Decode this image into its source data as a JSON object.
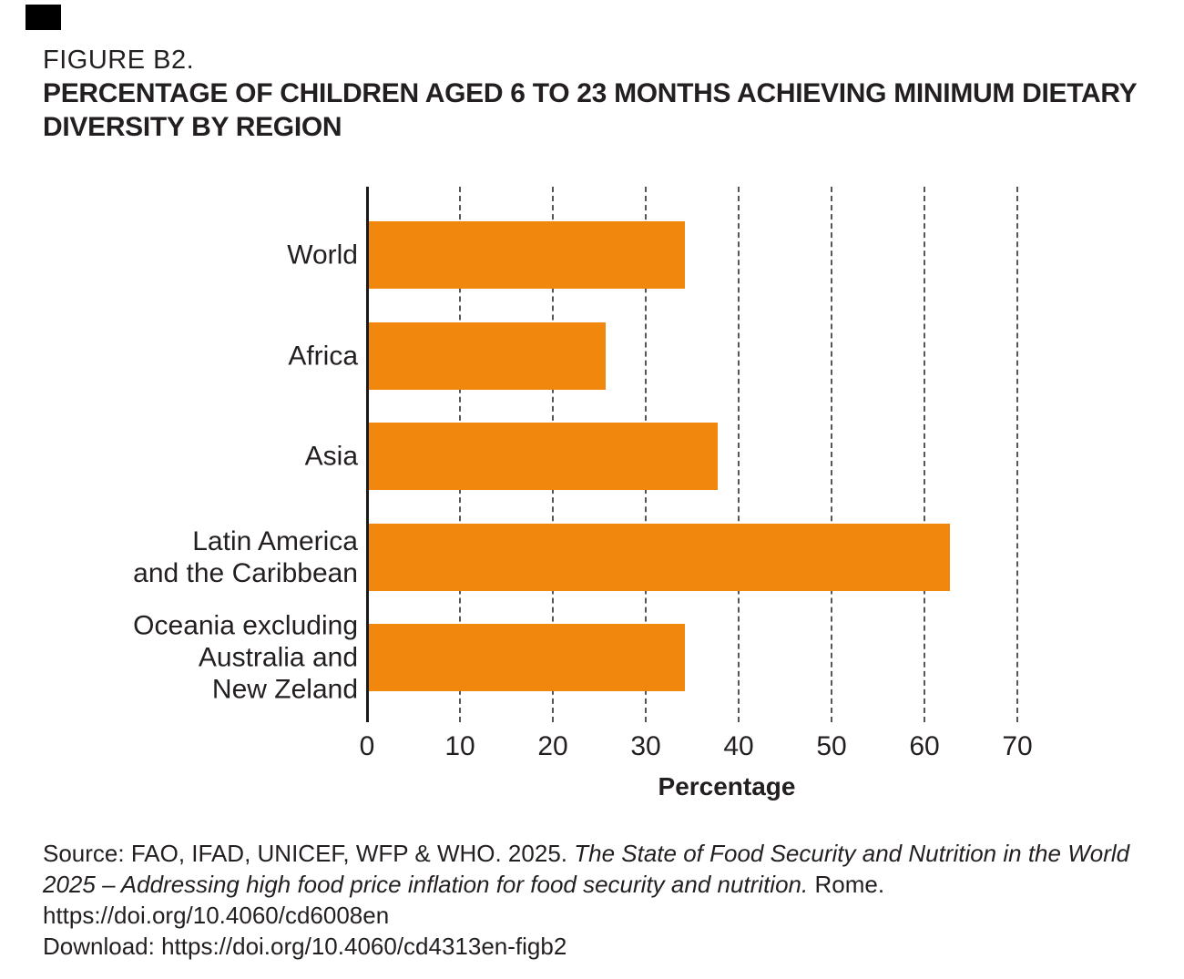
{
  "header": {
    "figure_label": "FIGURE B2.",
    "title_lines": [
      "PERCENTAGE OF CHILDREN AGED 6 TO 23 MONTHS ACHIEVING MINIMUM DIETARY",
      "DIVERSITY BY REGION"
    ]
  },
  "chart_data": {
    "type": "bar",
    "orientation": "horizontal",
    "categories": [
      "World",
      "Africa",
      "Asia",
      "Latin America\nand the Caribbean",
      "Oceania excluding\nAustralia and\nNew Zeland"
    ],
    "values": [
      34,
      25.5,
      37.5,
      62.5,
      34
    ],
    "xlabel": "Percentage",
    "xlim": [
      0,
      70
    ],
    "xticks": [
      0,
      10,
      20,
      30,
      40,
      50,
      60,
      70
    ],
    "bar_color": "#F2870E",
    "grid": "vertical-dashed",
    "legend": "none",
    "title": ""
  },
  "source": {
    "line1_regular": "Source: FAO, IFAD, UNICEF, WFP & WHO. 2025. ",
    "line1_italic": "The State of Food Security and Nutrition in the World",
    "line2_italic": "2025 – Addressing high food price inflation for food security and nutrition.",
    "line2_regular": " Rome.",
    "line3": "https://doi.org/10.4060/cd6008en",
    "line4": "Download: https://doi.org/10.4060/cd4313en-figb2"
  }
}
